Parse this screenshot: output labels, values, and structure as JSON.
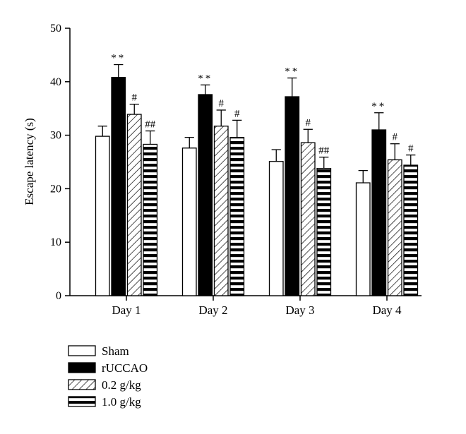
{
  "chart_data": {
    "type": "bar",
    "title": "",
    "xlabel": "",
    "ylabel": "Escape latency (s)",
    "ylim": [
      0,
      50
    ],
    "yticks": [
      0,
      10,
      20,
      30,
      40,
      50
    ],
    "grid": false,
    "legend_position": "bottom-left",
    "categories": [
      "Day 1",
      "Day 2",
      "Day 3",
      "Day 4"
    ],
    "series": [
      {
        "name": "Sham",
        "fill": "white",
        "values": [
          29.8,
          27.6,
          25.1,
          21.1
        ],
        "errors": [
          1.9,
          2.0,
          2.2,
          2.3
        ],
        "annotations": [
          "",
          "",
          "",
          ""
        ]
      },
      {
        "name": "rUCCAO",
        "fill": "black",
        "values": [
          40.8,
          37.6,
          37.2,
          31.0
        ],
        "errors": [
          2.4,
          1.8,
          3.5,
          3.2
        ],
        "annotations": [
          "**",
          "**",
          "**",
          "**"
        ]
      },
      {
        "name": "0.2 g/kg",
        "fill": "diagonal",
        "values": [
          33.9,
          31.7,
          28.6,
          25.4
        ],
        "errors": [
          1.9,
          3.0,
          2.5,
          3.0
        ],
        "annotations": [
          "#",
          "#",
          "#",
          "#"
        ]
      },
      {
        "name": "1.0 g/kg",
        "fill": "horizontal",
        "values": [
          28.3,
          29.6,
          23.8,
          24.4
        ],
        "errors": [
          2.5,
          3.2,
          2.1,
          1.9
        ],
        "annotations": [
          "##",
          "#",
          "##",
          "#"
        ]
      }
    ]
  }
}
